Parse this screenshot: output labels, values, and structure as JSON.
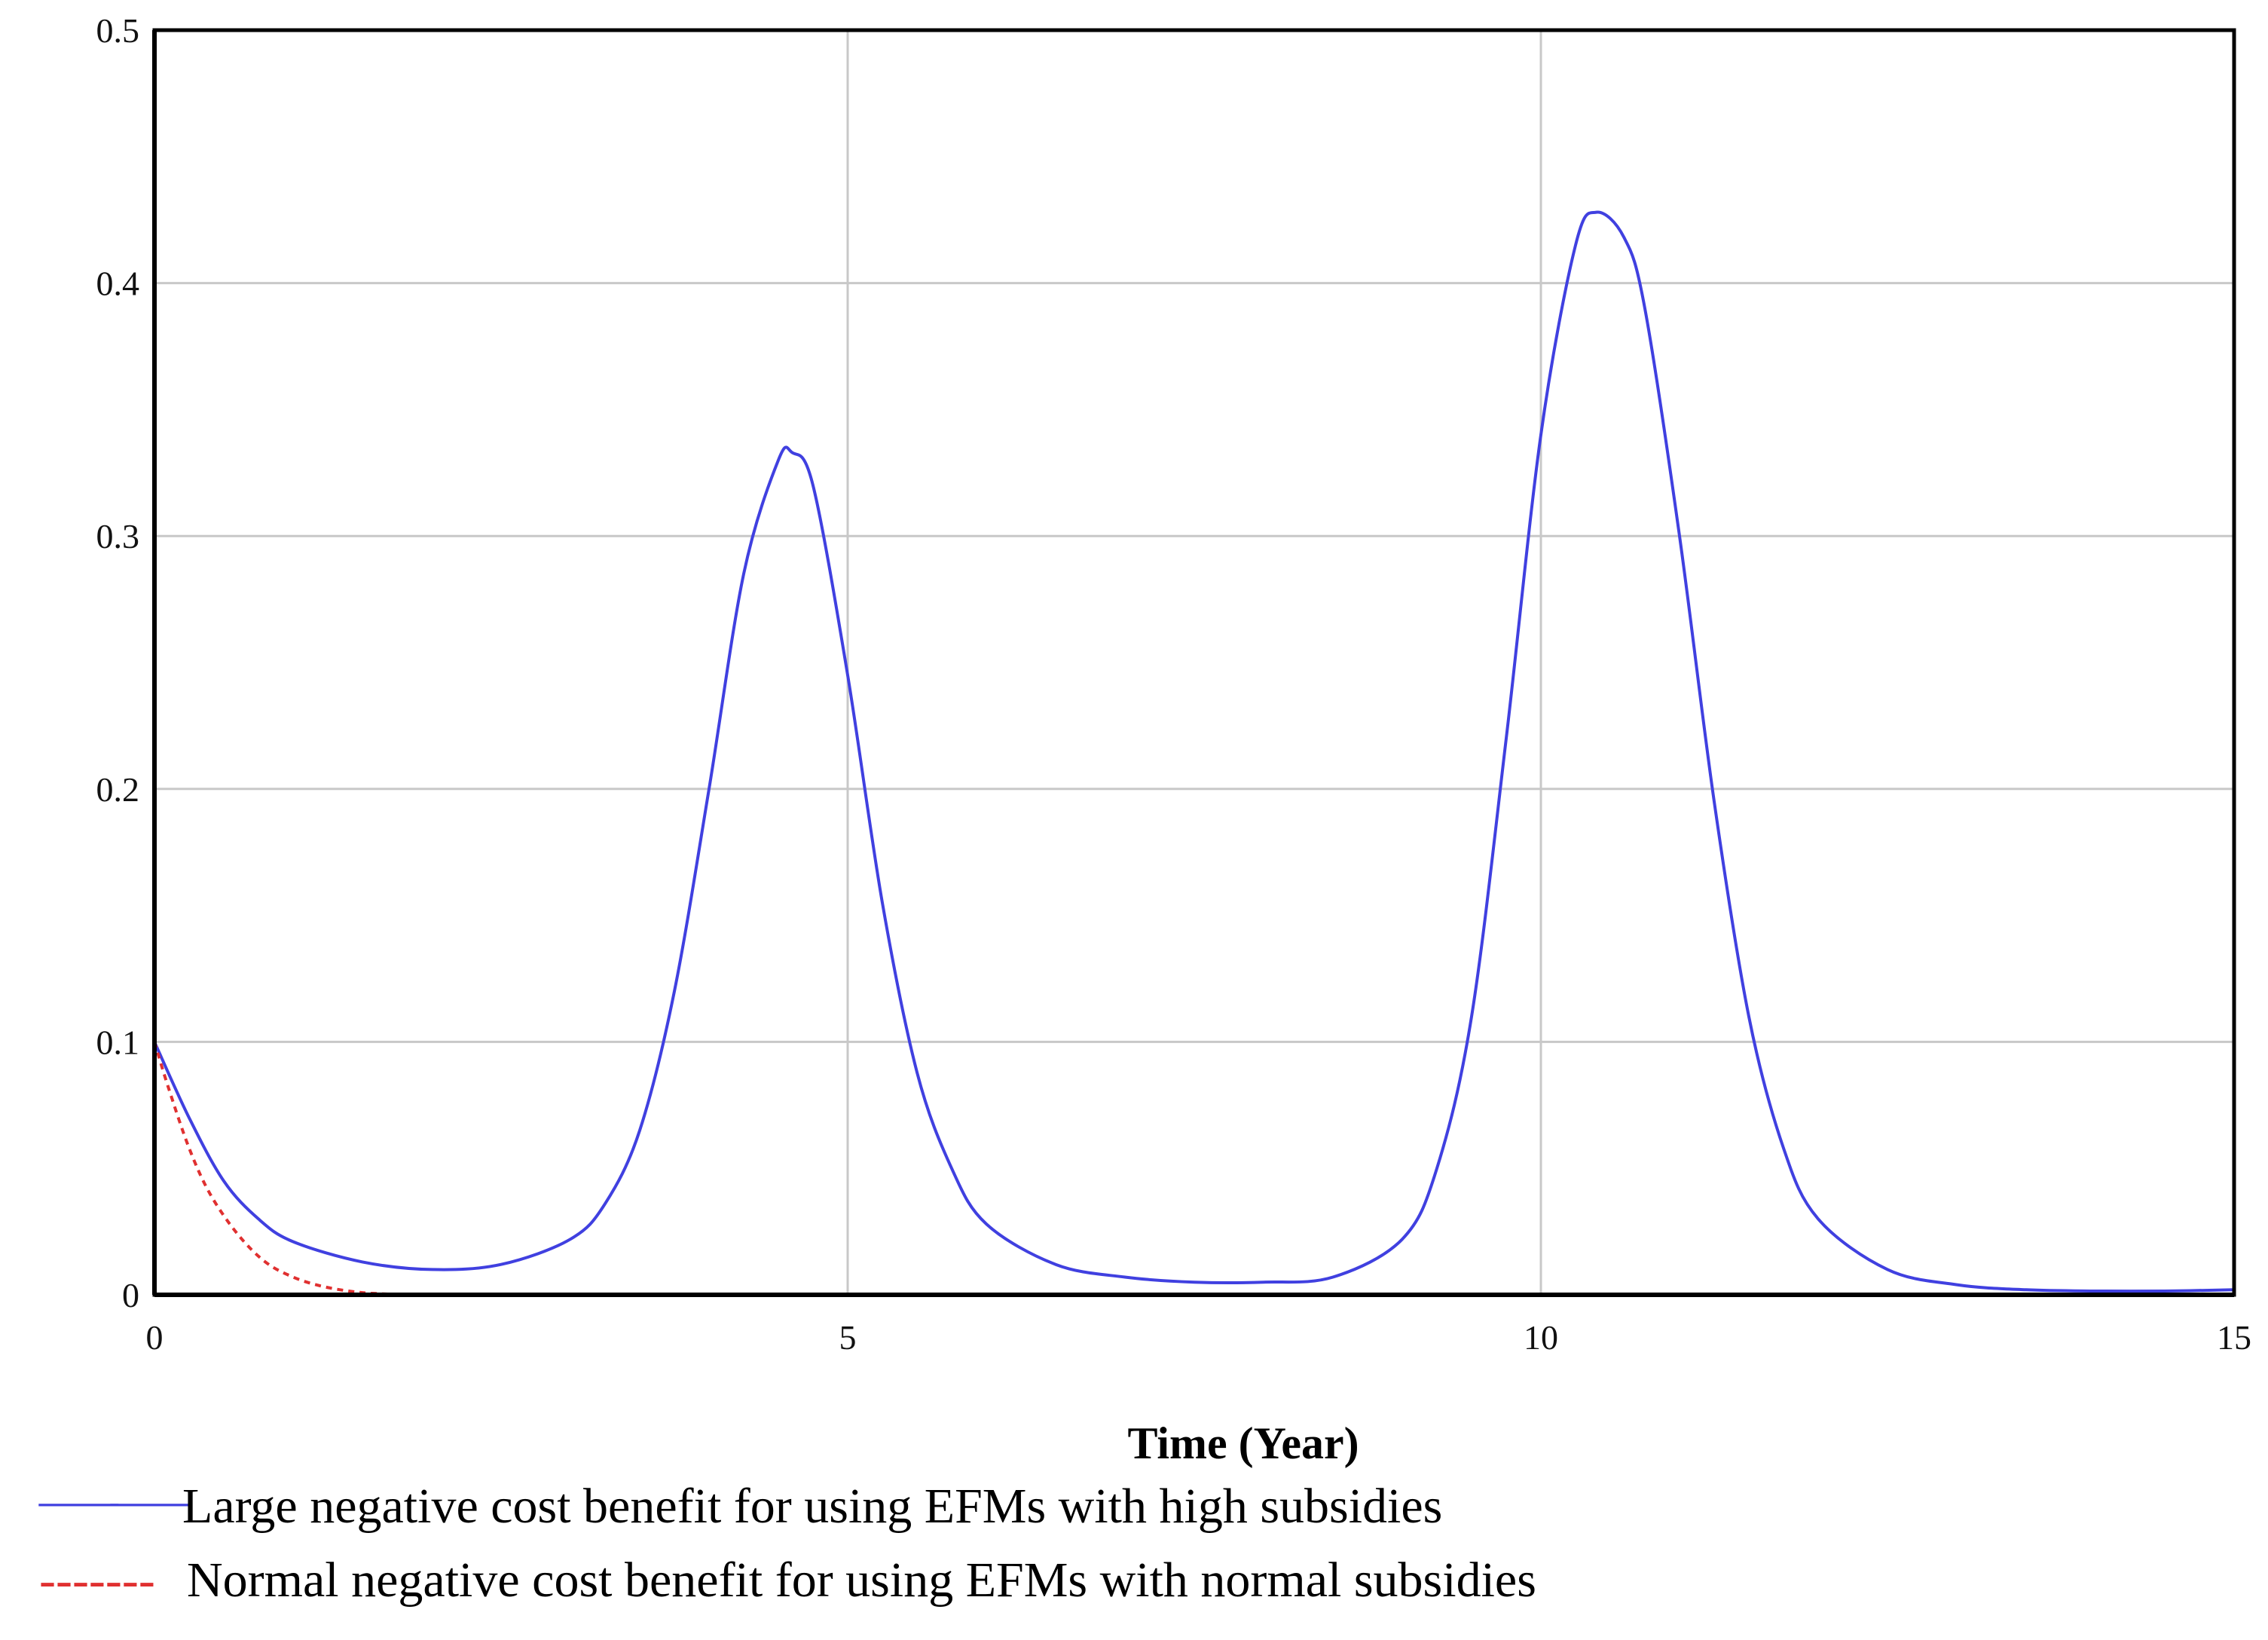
{
  "chart_data": {
    "type": "line",
    "title": "",
    "xlabel": "Time (Year)",
    "ylabel": "",
    "xlim": [
      0,
      15
    ],
    "ylim": [
      0,
      0.5
    ],
    "x_ticks": [
      0,
      5,
      10,
      15
    ],
    "x_tick_labels": [
      "0",
      "5",
      "10",
      "15"
    ],
    "y_ticks": [
      0,
      0.1,
      0.2,
      0.3,
      0.4,
      0.5
    ],
    "y_tick_labels": [
      "0",
      "0.1",
      "0.2",
      "0.3",
      "0.4",
      "0.5"
    ],
    "grid": true,
    "legend_position": "bottom-left",
    "series": [
      {
        "name": "Large negative cost benefit for using EFMs with high subsidies",
        "legend_marker": "——",
        "color": "#4040e0",
        "style": "solid",
        "x": [
          0,
          0.25,
          0.5,
          0.75,
          1.0,
          1.5,
          2.0,
          2.5,
          3.0,
          3.25,
          3.5,
          3.75,
          4.0,
          4.25,
          4.5,
          4.6,
          4.75,
          5.0,
          5.25,
          5.5,
          5.75,
          6.0,
          6.5,
          7.0,
          7.5,
          8.0,
          8.5,
          9.0,
          9.25,
          9.5,
          9.75,
          10.0,
          10.25,
          10.4,
          10.6,
          10.75,
          11.0,
          11.25,
          11.5,
          11.75,
          12.0,
          12.5,
          13.0,
          13.5,
          14.0,
          14.5,
          15.0
        ],
        "values": [
          0.1,
          0.07,
          0.045,
          0.03,
          0.021,
          0.013,
          0.01,
          0.012,
          0.022,
          0.036,
          0.065,
          0.12,
          0.2,
          0.285,
          0.33,
          0.333,
          0.32,
          0.245,
          0.155,
          0.088,
          0.05,
          0.028,
          0.012,
          0.007,
          0.005,
          0.005,
          0.007,
          0.022,
          0.05,
          0.11,
          0.22,
          0.34,
          0.415,
          0.428,
          0.418,
          0.39,
          0.3,
          0.195,
          0.11,
          0.058,
          0.03,
          0.01,
          0.004,
          0.002,
          0.0015,
          0.0015,
          0.002
        ]
      },
      {
        "name": "Normal negative cost benefit for using EFMs with normal subsidies",
        "legend_marker": "-------",
        "color": "#e03030",
        "style": "dashed",
        "x": [
          0,
          0.1,
          0.25,
          0.4,
          0.6,
          0.8,
          1.0,
          1.2,
          1.4,
          1.6,
          2.0,
          3.0,
          15.0
        ],
        "values": [
          0.1,
          0.082,
          0.058,
          0.04,
          0.024,
          0.013,
          0.007,
          0.0035,
          0.0015,
          0.0005,
          0.0,
          0.0,
          0.0
        ]
      }
    ]
  }
}
